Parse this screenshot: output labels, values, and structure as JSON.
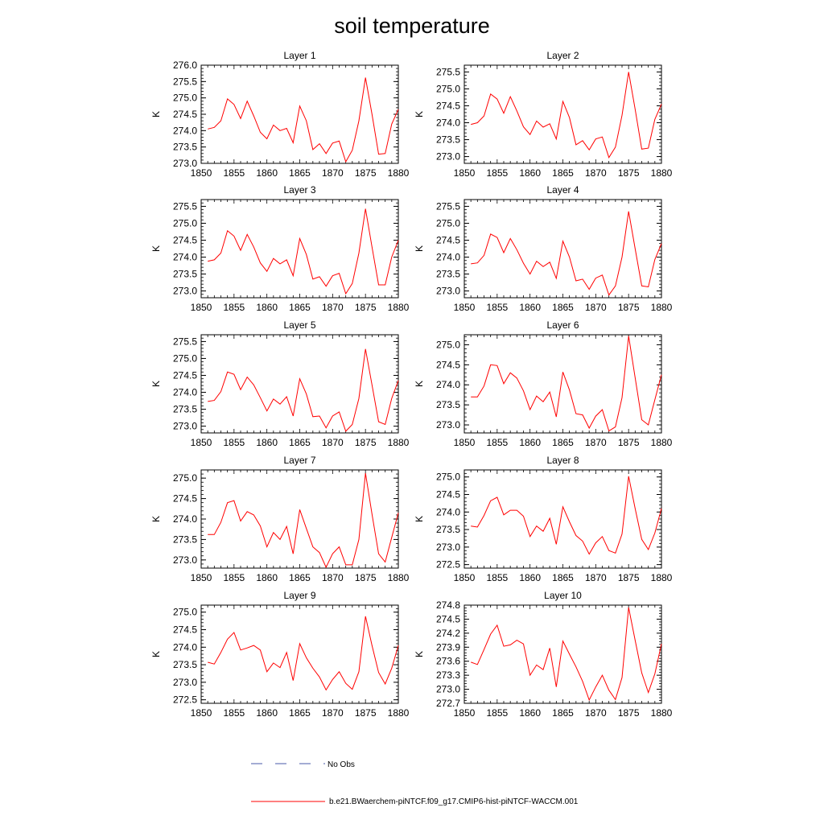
{
  "title": "soil temperature",
  "legend": {
    "no_obs": "No Obs",
    "model": "b.e21.BWaerchem-piNTCF.f09_g17.CMIP6-hist-piNTCF-WACCM.001",
    "no_obs_color": "#4a5aa8",
    "model_color": "#ff0000"
  },
  "chart_data": [
    {
      "type": "line",
      "title": "Layer 1",
      "xlabel": "",
      "ylabel": "K",
      "xlim": [
        1850,
        1880
      ],
      "ylim": [
        273.0,
        276.0
      ],
      "xticks": [
        "1850",
        "1855",
        "1860",
        "1865",
        "1870",
        "1875",
        "1880"
      ],
      "yticks": [
        "273.0",
        "273.5",
        "274.0",
        "274.5",
        "275.0",
        "275.5",
        "276.0"
      ],
      "x": [
        1851,
        1852,
        1853,
        1854,
        1855,
        1856,
        1857,
        1858,
        1859,
        1860,
        1861,
        1862,
        1863,
        1864,
        1865,
        1866,
        1867,
        1868,
        1869,
        1870,
        1871,
        1872,
        1873,
        1874,
        1875,
        1876,
        1877,
        1878,
        1879,
        1880
      ],
      "series": [
        {
          "color": "#ff0000",
          "values": [
            274.05,
            274.1,
            274.3,
            274.97,
            274.8,
            274.37,
            274.9,
            274.45,
            273.95,
            273.75,
            274.17,
            274.0,
            274.07,
            273.63,
            274.75,
            274.3,
            273.42,
            273.6,
            273.3,
            273.62,
            273.68,
            273.05,
            273.4,
            274.3,
            275.62,
            274.5,
            273.28,
            273.3,
            274.2,
            274.65
          ]
        }
      ]
    },
    {
      "type": "line",
      "title": "Layer 2",
      "xlabel": "",
      "ylabel": "K",
      "xlim": [
        1850,
        1880
      ],
      "ylim": [
        272.8,
        275.7
      ],
      "xticks": [
        "1850",
        "1855",
        "1860",
        "1865",
        "1870",
        "1875",
        "1880"
      ],
      "yticks": [
        "273.0",
        "273.5",
        "274.0",
        "274.5",
        "275.0",
        "275.5"
      ],
      "x": [
        1851,
        1852,
        1853,
        1854,
        1855,
        1856,
        1857,
        1858,
        1859,
        1860,
        1861,
        1862,
        1863,
        1864,
        1865,
        1866,
        1867,
        1868,
        1869,
        1870,
        1871,
        1872,
        1873,
        1874,
        1875,
        1876,
        1877,
        1878,
        1879,
        1880
      ],
      "series": [
        {
          "color": "#ff0000",
          "values": [
            273.95,
            274.0,
            274.2,
            274.85,
            274.7,
            274.28,
            274.77,
            274.35,
            273.88,
            273.65,
            274.05,
            273.87,
            273.97,
            273.52,
            274.63,
            274.15,
            273.35,
            273.47,
            273.2,
            273.52,
            273.58,
            272.97,
            273.28,
            274.22,
            275.5,
            274.4,
            273.22,
            273.25,
            274.1,
            274.55
          ]
        }
      ]
    },
    {
      "type": "line",
      "title": "Layer 3",
      "xlabel": "",
      "ylabel": "K",
      "xlim": [
        1850,
        1880
      ],
      "ylim": [
        272.8,
        275.7
      ],
      "xticks": [
        "1850",
        "1855",
        "1860",
        "1865",
        "1870",
        "1875",
        "1880"
      ],
      "yticks": [
        "273.0",
        "273.5",
        "274.0",
        "274.5",
        "275.0",
        "275.5"
      ],
      "x": [
        1851,
        1852,
        1853,
        1854,
        1855,
        1856,
        1857,
        1858,
        1859,
        1860,
        1861,
        1862,
        1863,
        1864,
        1865,
        1866,
        1867,
        1868,
        1869,
        1870,
        1871,
        1872,
        1873,
        1874,
        1875,
        1876,
        1877,
        1878,
        1879,
        1880
      ],
      "series": [
        {
          "color": "#ff0000",
          "values": [
            273.88,
            273.92,
            274.12,
            274.78,
            274.62,
            274.2,
            274.67,
            274.3,
            273.83,
            273.58,
            273.96,
            273.8,
            273.92,
            273.45,
            274.55,
            274.08,
            273.35,
            273.42,
            273.14,
            273.45,
            273.52,
            272.92,
            273.22,
            274.12,
            275.43,
            274.3,
            273.18,
            273.18,
            274.0,
            274.5
          ]
        }
      ]
    },
    {
      "type": "line",
      "title": "Layer 4",
      "xlabel": "",
      "ylabel": "K",
      "xlim": [
        1850,
        1880
      ],
      "ylim": [
        272.8,
        275.7
      ],
      "xticks": [
        "1850",
        "1855",
        "1860",
        "1865",
        "1870",
        "1875",
        "1880"
      ],
      "yticks": [
        "273.0",
        "273.5",
        "274.0",
        "274.5",
        "275.0",
        "275.5"
      ],
      "x": [
        1851,
        1852,
        1853,
        1854,
        1855,
        1856,
        1857,
        1858,
        1859,
        1860,
        1861,
        1862,
        1863,
        1864,
        1865,
        1866,
        1867,
        1868,
        1869,
        1870,
        1871,
        1872,
        1873,
        1874,
        1875,
        1876,
        1877,
        1878,
        1879,
        1880
      ],
      "series": [
        {
          "color": "#ff0000",
          "values": [
            273.8,
            273.83,
            274.05,
            274.68,
            274.58,
            274.13,
            274.55,
            274.22,
            273.82,
            273.5,
            273.88,
            273.72,
            273.85,
            273.37,
            274.47,
            274.0,
            273.3,
            273.35,
            273.05,
            273.38,
            273.47,
            272.88,
            273.15,
            274.0,
            275.35,
            274.25,
            273.15,
            273.12,
            273.93,
            274.4
          ]
        }
      ]
    },
    {
      "type": "line",
      "title": "Layer 5",
      "xlabel": "",
      "ylabel": "K",
      "xlim": [
        1850,
        1880
      ],
      "ylim": [
        272.8,
        275.7
      ],
      "xticks": [
        "1850",
        "1855",
        "1860",
        "1865",
        "1870",
        "1875",
        "1880"
      ],
      "yticks": [
        "273.0",
        "273.5",
        "274.0",
        "274.5",
        "275.0",
        "275.5"
      ],
      "x": [
        1851,
        1852,
        1853,
        1854,
        1855,
        1856,
        1857,
        1858,
        1859,
        1860,
        1861,
        1862,
        1863,
        1864,
        1865,
        1866,
        1867,
        1868,
        1869,
        1870,
        1871,
        1872,
        1873,
        1874,
        1875,
        1876,
        1877,
        1878,
        1879,
        1880
      ],
      "series": [
        {
          "color": "#ff0000",
          "values": [
            273.73,
            273.76,
            274.02,
            274.6,
            274.53,
            274.08,
            274.45,
            274.22,
            273.84,
            273.45,
            273.8,
            273.65,
            273.87,
            273.3,
            274.4,
            273.95,
            273.28,
            273.3,
            272.95,
            273.3,
            273.42,
            272.85,
            273.05,
            273.82,
            275.28,
            274.22,
            273.13,
            273.05,
            273.82,
            274.35
          ]
        }
      ]
    },
    {
      "type": "line",
      "title": "Layer 6",
      "xlabel": "",
      "ylabel": "K",
      "xlim": [
        1850,
        1880
      ],
      "ylim": [
        272.8,
        275.25
      ],
      "xticks": [
        "1850",
        "1855",
        "1860",
        "1865",
        "1870",
        "1875",
        "1880"
      ],
      "yticks": [
        "273.0",
        "273.5",
        "274.0",
        "274.5",
        "275.0"
      ],
      "x": [
        1851,
        1852,
        1853,
        1854,
        1855,
        1856,
        1857,
        1858,
        1859,
        1860,
        1861,
        1862,
        1863,
        1864,
        1865,
        1866,
        1867,
        1868,
        1869,
        1870,
        1871,
        1872,
        1873,
        1874,
        1875,
        1876,
        1877,
        1878,
        1879,
        1880
      ],
      "series": [
        {
          "color": "#ff0000",
          "values": [
            273.7,
            273.7,
            273.97,
            274.5,
            274.48,
            274.03,
            274.3,
            274.17,
            273.85,
            273.38,
            273.72,
            273.58,
            273.82,
            273.2,
            274.32,
            273.87,
            273.28,
            273.25,
            272.92,
            273.22,
            273.38,
            272.85,
            272.95,
            273.68,
            275.22,
            274.18,
            273.13,
            273.0,
            273.63,
            274.25
          ]
        }
      ]
    },
    {
      "type": "line",
      "title": "Layer 7",
      "xlabel": "",
      "ylabel": "K",
      "xlim": [
        1850,
        1880
      ],
      "ylim": [
        272.8,
        275.2
      ],
      "xticks": [
        "1850",
        "1855",
        "1860",
        "1865",
        "1870",
        "1875",
        "1880"
      ],
      "yticks": [
        "273.0",
        "273.5",
        "274.0",
        "274.5",
        "275.0"
      ],
      "x": [
        1851,
        1852,
        1853,
        1854,
        1855,
        1856,
        1857,
        1858,
        1859,
        1860,
        1861,
        1862,
        1863,
        1864,
        1865,
        1866,
        1867,
        1868,
        1869,
        1870,
        1871,
        1872,
        1873,
        1874,
        1875,
        1876,
        1877,
        1878,
        1879,
        1880
      ],
      "series": [
        {
          "color": "#ff0000",
          "values": [
            273.62,
            273.62,
            273.92,
            274.4,
            274.45,
            273.95,
            274.18,
            274.1,
            273.83,
            273.32,
            273.67,
            273.5,
            273.82,
            273.15,
            274.23,
            273.77,
            273.32,
            273.18,
            272.82,
            273.15,
            273.32,
            272.88,
            272.88,
            273.5,
            275.12,
            274.12,
            273.15,
            272.95,
            273.55,
            274.15
          ]
        }
      ]
    },
    {
      "type": "line",
      "title": "Layer 8",
      "xlabel": "",
      "ylabel": "K",
      "xlim": [
        1850,
        1880
      ],
      "ylim": [
        272.4,
        275.2
      ],
      "xticks": [
        "1850",
        "1855",
        "1860",
        "1865",
        "1870",
        "1875",
        "1880"
      ],
      "yticks": [
        "272.5",
        "273.0",
        "273.5",
        "274.0",
        "274.5",
        "275.0"
      ],
      "x": [
        1851,
        1852,
        1853,
        1854,
        1855,
        1856,
        1857,
        1858,
        1859,
        1860,
        1861,
        1862,
        1863,
        1864,
        1865,
        1866,
        1867,
        1868,
        1869,
        1870,
        1871,
        1872,
        1873,
        1874,
        1875,
        1876,
        1877,
        1878,
        1879,
        1880
      ],
      "series": [
        {
          "color": "#ff0000",
          "values": [
            273.6,
            273.57,
            273.9,
            274.32,
            274.42,
            273.92,
            274.05,
            274.05,
            273.88,
            273.3,
            273.6,
            273.45,
            273.82,
            273.08,
            274.15,
            273.72,
            273.33,
            273.17,
            272.8,
            273.12,
            273.3,
            272.9,
            272.83,
            273.37,
            275.02,
            274.1,
            273.22,
            272.93,
            273.4,
            274.1
          ]
        }
      ]
    },
    {
      "type": "line",
      "title": "Layer 9",
      "xlabel": "",
      "ylabel": "K",
      "xlim": [
        1850,
        1880
      ],
      "ylim": [
        272.4,
        275.2
      ],
      "xticks": [
        "1850",
        "1855",
        "1860",
        "1865",
        "1870",
        "1875",
        "1880"
      ],
      "yticks": [
        "272.5",
        "273.0",
        "273.5",
        "274.0",
        "274.5",
        "275.0"
      ],
      "x": [
        1851,
        1852,
        1853,
        1854,
        1855,
        1856,
        1857,
        1858,
        1859,
        1860,
        1861,
        1862,
        1863,
        1864,
        1865,
        1866,
        1867,
        1868,
        1869,
        1870,
        1871,
        1872,
        1873,
        1874,
        1875,
        1876,
        1877,
        1878,
        1879,
        1880
      ],
      "series": [
        {
          "color": "#ff0000",
          "values": [
            273.57,
            273.52,
            273.85,
            274.23,
            274.42,
            273.92,
            273.98,
            274.05,
            273.92,
            273.3,
            273.55,
            273.42,
            273.85,
            273.05,
            274.1,
            273.7,
            273.4,
            273.15,
            272.78,
            273.08,
            273.3,
            272.97,
            272.8,
            273.3,
            274.88,
            274.05,
            273.28,
            272.95,
            273.4,
            274.05
          ]
        }
      ]
    },
    {
      "type": "line",
      "title": "Layer 10",
      "xlabel": "",
      "ylabel": "K",
      "xlim": [
        1850,
        1880
      ],
      "ylim": [
        272.7,
        274.8
      ],
      "xticks": [
        "1850",
        "1855",
        "1860",
        "1865",
        "1870",
        "1875",
        "1880"
      ],
      "yticks": [
        "272.7",
        "273.0",
        "273.3",
        "273.6",
        "273.9",
        "274.2",
        "274.5",
        "274.8"
      ],
      "x": [
        1851,
        1852,
        1853,
        1854,
        1855,
        1856,
        1857,
        1858,
        1859,
        1860,
        1861,
        1862,
        1863,
        1864,
        1865,
        1866,
        1867,
        1868,
        1869,
        1870,
        1871,
        1872,
        1873,
        1874,
        1875,
        1876,
        1877,
        1878,
        1879,
        1880
      ],
      "series": [
        {
          "color": "#ff0000",
          "values": [
            273.58,
            273.53,
            273.85,
            274.18,
            274.37,
            273.92,
            273.95,
            274.05,
            273.97,
            273.3,
            273.52,
            273.42,
            273.88,
            273.05,
            274.03,
            273.75,
            273.48,
            273.17,
            272.77,
            273.05,
            273.3,
            272.98,
            272.78,
            273.25,
            274.75,
            274.05,
            273.35,
            272.93,
            273.33,
            273.97
          ]
        }
      ]
    }
  ]
}
